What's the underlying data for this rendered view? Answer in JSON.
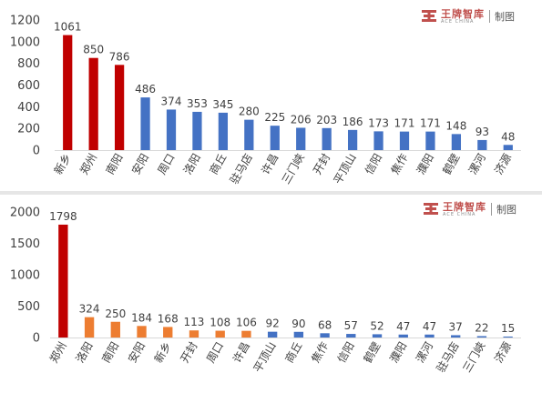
{
  "watermark": {
    "brand_cn": "王牌智库",
    "brand_en": "ACE CHINA",
    "suffix": "制图"
  },
  "colors": {
    "red": "#c00000",
    "blue": "#4472c4",
    "orange": "#ed7d31",
    "tick_text": "#404040",
    "grid_line": "#d9d9d9"
  },
  "chart_data": [
    {
      "type": "bar",
      "title": "",
      "xlabel": "",
      "ylabel": "",
      "ylim": [
        0,
        1200
      ],
      "yticks": [
        0,
        200,
        400,
        600,
        800,
        1000,
        1200
      ],
      "grid": false,
      "categories": [
        "新乡",
        "郑州",
        "南阳",
        "安阳",
        "周口",
        "洛阳",
        "商丘",
        "驻马店",
        "许昌",
        "三门峡",
        "开封",
        "平顶山",
        "信阳",
        "焦作",
        "濮阳",
        "鹤壁",
        "漯河",
        "济源"
      ],
      "values": [
        1061,
        850,
        786,
        486,
        374,
        353,
        345,
        280,
        225,
        206,
        203,
        186,
        173,
        171,
        171,
        148,
        93,
        48
      ],
      "bar_colors": [
        "red",
        "red",
        "red",
        "blue",
        "blue",
        "blue",
        "blue",
        "blue",
        "blue",
        "blue",
        "blue",
        "blue",
        "blue",
        "blue",
        "blue",
        "blue",
        "blue",
        "blue"
      ]
    },
    {
      "type": "bar",
      "title": "",
      "xlabel": "",
      "ylabel": "",
      "ylim": [
        0,
        2000
      ],
      "yticks": [
        0,
        500,
        1000,
        1500,
        2000
      ],
      "grid": false,
      "categories": [
        "郑州",
        "洛阳",
        "南阳",
        "安阳",
        "新乡",
        "开封",
        "周口",
        "许昌",
        "平顶山",
        "商丘",
        "焦作",
        "信阳",
        "鹤壁",
        "濮阳",
        "漯河",
        "驻马店",
        "三门峡",
        "济源"
      ],
      "values": [
        1798,
        324,
        250,
        184,
        168,
        113,
        108,
        106,
        92,
        90,
        68,
        57,
        52,
        47,
        47,
        37,
        22,
        15
      ],
      "bar_colors": [
        "red",
        "orange",
        "orange",
        "orange",
        "orange",
        "orange",
        "orange",
        "orange",
        "blue",
        "blue",
        "blue",
        "blue",
        "blue",
        "blue",
        "blue",
        "blue",
        "blue",
        "blue"
      ]
    }
  ]
}
